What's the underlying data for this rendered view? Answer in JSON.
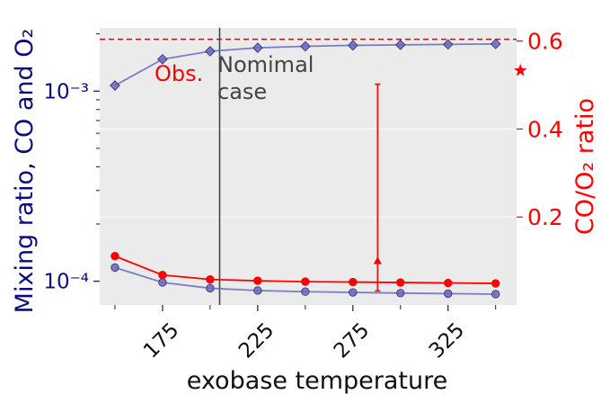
{
  "chart_data": {
    "type": "line",
    "title": "",
    "xlabel": "exobase temperature",
    "ylabel_left": "Mixing ratio, CO and O₂",
    "ylabel_right": "CO/O₂ ratio",
    "x_ticks": [
      175,
      225,
      275,
      325
    ],
    "x_range": [
      142,
      361
    ],
    "y_left_scale": "log",
    "y_left_range": [
      7.5e-05,
      0.00215
    ],
    "y_left_ticks": [
      {
        "value": 0.0001,
        "label": "10⁻⁴"
      },
      {
        "value": 0.001,
        "label": "10⁻³"
      }
    ],
    "y_right_range": [
      0.0,
      0.63
    ],
    "y_right_ticks": [
      0.2,
      0.4,
      0.6
    ],
    "grid": true,
    "series": [
      {
        "axis": "left",
        "color": "#6a6ab8",
        "marker": "diamond",
        "x": [
          150,
          175,
          200,
          225,
          250,
          275,
          300,
          325,
          350
        ],
        "values": [
          0.00107,
          0.00147,
          0.00162,
          0.00169,
          0.00172,
          0.00174,
          0.00175,
          0.00176,
          0.00177
        ]
      },
      {
        "axis": "left",
        "color": "#6a6ab8",
        "marker": "circle",
        "x": [
          150,
          175,
          200,
          225,
          250,
          275,
          300,
          325,
          350
        ],
        "values": [
          0.000118,
          9.85e-05,
          9.18e-05,
          8.93e-05,
          8.81e-05,
          8.73e-05,
          8.66e-05,
          8.6e-05,
          8.55e-05
        ]
      },
      {
        "axis": "right",
        "color": "#ff0000",
        "marker": "circle",
        "x": [
          150,
          175,
          200,
          225,
          250,
          275,
          300,
          325,
          350
        ],
        "values": [
          0.111,
          0.068,
          0.058,
          0.055,
          0.053,
          0.052,
          0.051,
          0.05,
          0.049
        ]
      }
    ],
    "reference_lines": [
      {
        "orientation": "horizontal",
        "axis": "right",
        "value": 0.604,
        "color": "#ff0000",
        "style": "dashed"
      },
      {
        "orientation": "vertical",
        "x": 205,
        "color": "#444444",
        "style": "solid"
      }
    ],
    "observation": {
      "x": 288,
      "value": 0.1,
      "err_low": 0.032,
      "err_high": 0.502,
      "color": "#ff0000"
    },
    "star": {
      "x": 363,
      "value": 0.533,
      "color": "#ff0000"
    },
    "annotations": [
      {
        "text": "Obs.",
        "color": "#ff0000"
      },
      {
        "text": "Nomimal\ncase",
        "color": "#444444"
      }
    ]
  },
  "colors": {
    "plot_bg": "#ebebeb",
    "grid": "#ffffff",
    "left_axis": "#0c0c80",
    "right_axis": "#ff0000",
    "text": "#111111"
  }
}
